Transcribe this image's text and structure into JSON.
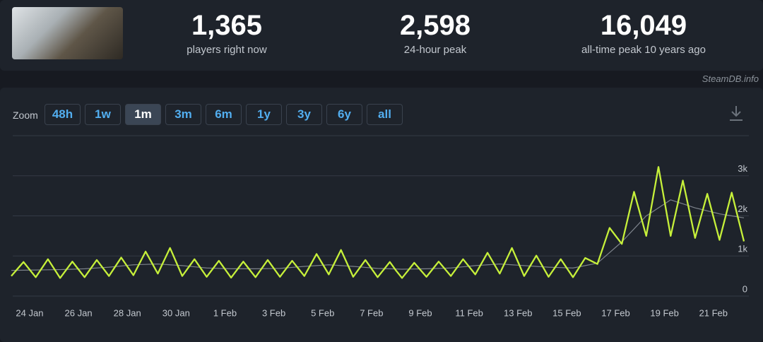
{
  "header": {
    "stats": [
      {
        "value": "1,365",
        "label": "players right now"
      },
      {
        "value": "2,598",
        "label": "24-hour peak"
      },
      {
        "value": "16,049",
        "label": "all-time peak 10 years ago"
      }
    ]
  },
  "watermark": "SteamDB.info",
  "zoom": {
    "label": "Zoom",
    "options": [
      "48h",
      "1w",
      "1m",
      "3m",
      "6m",
      "1y",
      "3y",
      "6y",
      "all"
    ],
    "active": 2
  },
  "chart_data": {
    "type": "line",
    "categories": [
      null,
      null,
      null,
      "24 Jan",
      null,
      null,
      null,
      null,
      null,
      null,
      null,
      "26 Jan",
      null,
      null,
      null,
      null,
      null,
      null,
      null,
      "28 Jan",
      null,
      null,
      null,
      null,
      null,
      null,
      null,
      "30 Jan",
      null,
      null,
      null,
      null,
      null,
      null,
      null,
      "1 Feb",
      null,
      null,
      null,
      null,
      null,
      null,
      null,
      "3 Feb",
      null,
      null,
      null,
      null,
      null,
      null,
      null,
      "5 Feb",
      null,
      null,
      null,
      null,
      null,
      null,
      null,
      "7 Feb",
      null,
      null,
      null,
      null,
      null,
      null,
      null,
      "9 Feb",
      null,
      null,
      null,
      null,
      null,
      null,
      null,
      "11 Feb",
      null,
      null,
      null,
      null,
      null,
      null,
      null,
      "13 Feb",
      null,
      null,
      null,
      null,
      null,
      null,
      null,
      "15 Feb",
      null,
      null,
      null,
      null,
      null,
      null,
      null,
      "17 Feb",
      null,
      null,
      null,
      null,
      null,
      null,
      null,
      "19 Feb",
      null,
      null,
      null,
      null,
      null,
      null,
      null,
      "21 Feb",
      null,
      null,
      null,
      null,
      null
    ],
    "series": [
      {
        "color": "#7d838b",
        "values": [
          640,
          643,
          645,
          648,
          650,
          653,
          655,
          658,
          660,
          665,
          670,
          675,
          680,
          690,
          700,
          710,
          720,
          735,
          750,
          765,
          780,
          785,
          790,
          795,
          800,
          790,
          780,
          770,
          760,
          745,
          730,
          715,
          700,
          695,
          690,
          685,
          680,
          680,
          680,
          680,
          680,
          683,
          685,
          688,
          690,
          703,
          715,
          728,
          740,
          750,
          760,
          770,
          780,
          770,
          760,
          750,
          740,
          728,
          715,
          703,
          690,
          685,
          680,
          675,
          670,
          673,
          675,
          678,
          680,
          685,
          690,
          695,
          700,
          715,
          730,
          745,
          760,
          770,
          780,
          790,
          800,
          790,
          780,
          770,
          760,
          750,
          740,
          730,
          720,
          715,
          710,
          705,
          700,
          730,
          760,
          790,
          820,
          953,
          1085,
          1218,
          1350,
          1513,
          1675,
          1838,
          2000,
          2100,
          2200,
          2300,
          2400,
          2350,
          2300,
          2250,
          2200,
          2163,
          2125,
          2088,
          2050,
          2025,
          2000,
          1975,
          1950
        ]
      },
      {
        "color": "#c6f03a",
        "values": [
          500,
          675,
          850,
          660,
          470,
          695,
          920,
          685,
          450,
          655,
          860,
          665,
          470,
          685,
          900,
          700,
          500,
          730,
          960,
          740,
          520,
          815,
          1110,
          835,
          560,
          880,
          1200,
          850,
          500,
          710,
          920,
          700,
          480,
          680,
          880,
          670,
          460,
          660,
          860,
          665,
          470,
          685,
          900,
          690,
          480,
          680,
          880,
          690,
          500,
          775,
          1050,
          795,
          540,
          845,
          1150,
          815,
          480,
          690,
          900,
          685,
          470,
          660,
          850,
          640,
          450,
          640,
          830,
          655,
          480,
          670,
          860,
          680,
          500,
          710,
          920,
          730,
          540,
          810,
          1080,
          820,
          560,
          880,
          1200,
          850,
          500,
          755,
          1010,
          745,
          480,
          700,
          920,
          695,
          470,
          710,
          950,
          875,
          800,
          1250,
          1700,
          1500,
          1300,
          1950,
          2600,
          2050,
          1500,
          2360,
          3220,
          2360,
          1500,
          2190,
          2880,
          2165,
          1450,
          2000,
          2550,
          1975,
          1400,
          1990,
          2580,
          1970,
          1365
        ]
      }
    ],
    "ylim": [
      0,
      4000
    ],
    "yticks": [
      0,
      {
        "value": 1000,
        "label": "1k"
      },
      {
        "value": 2000,
        "label": "2k"
      },
      {
        "value": 3000,
        "label": "3k"
      }
    ],
    "grid": true
  }
}
